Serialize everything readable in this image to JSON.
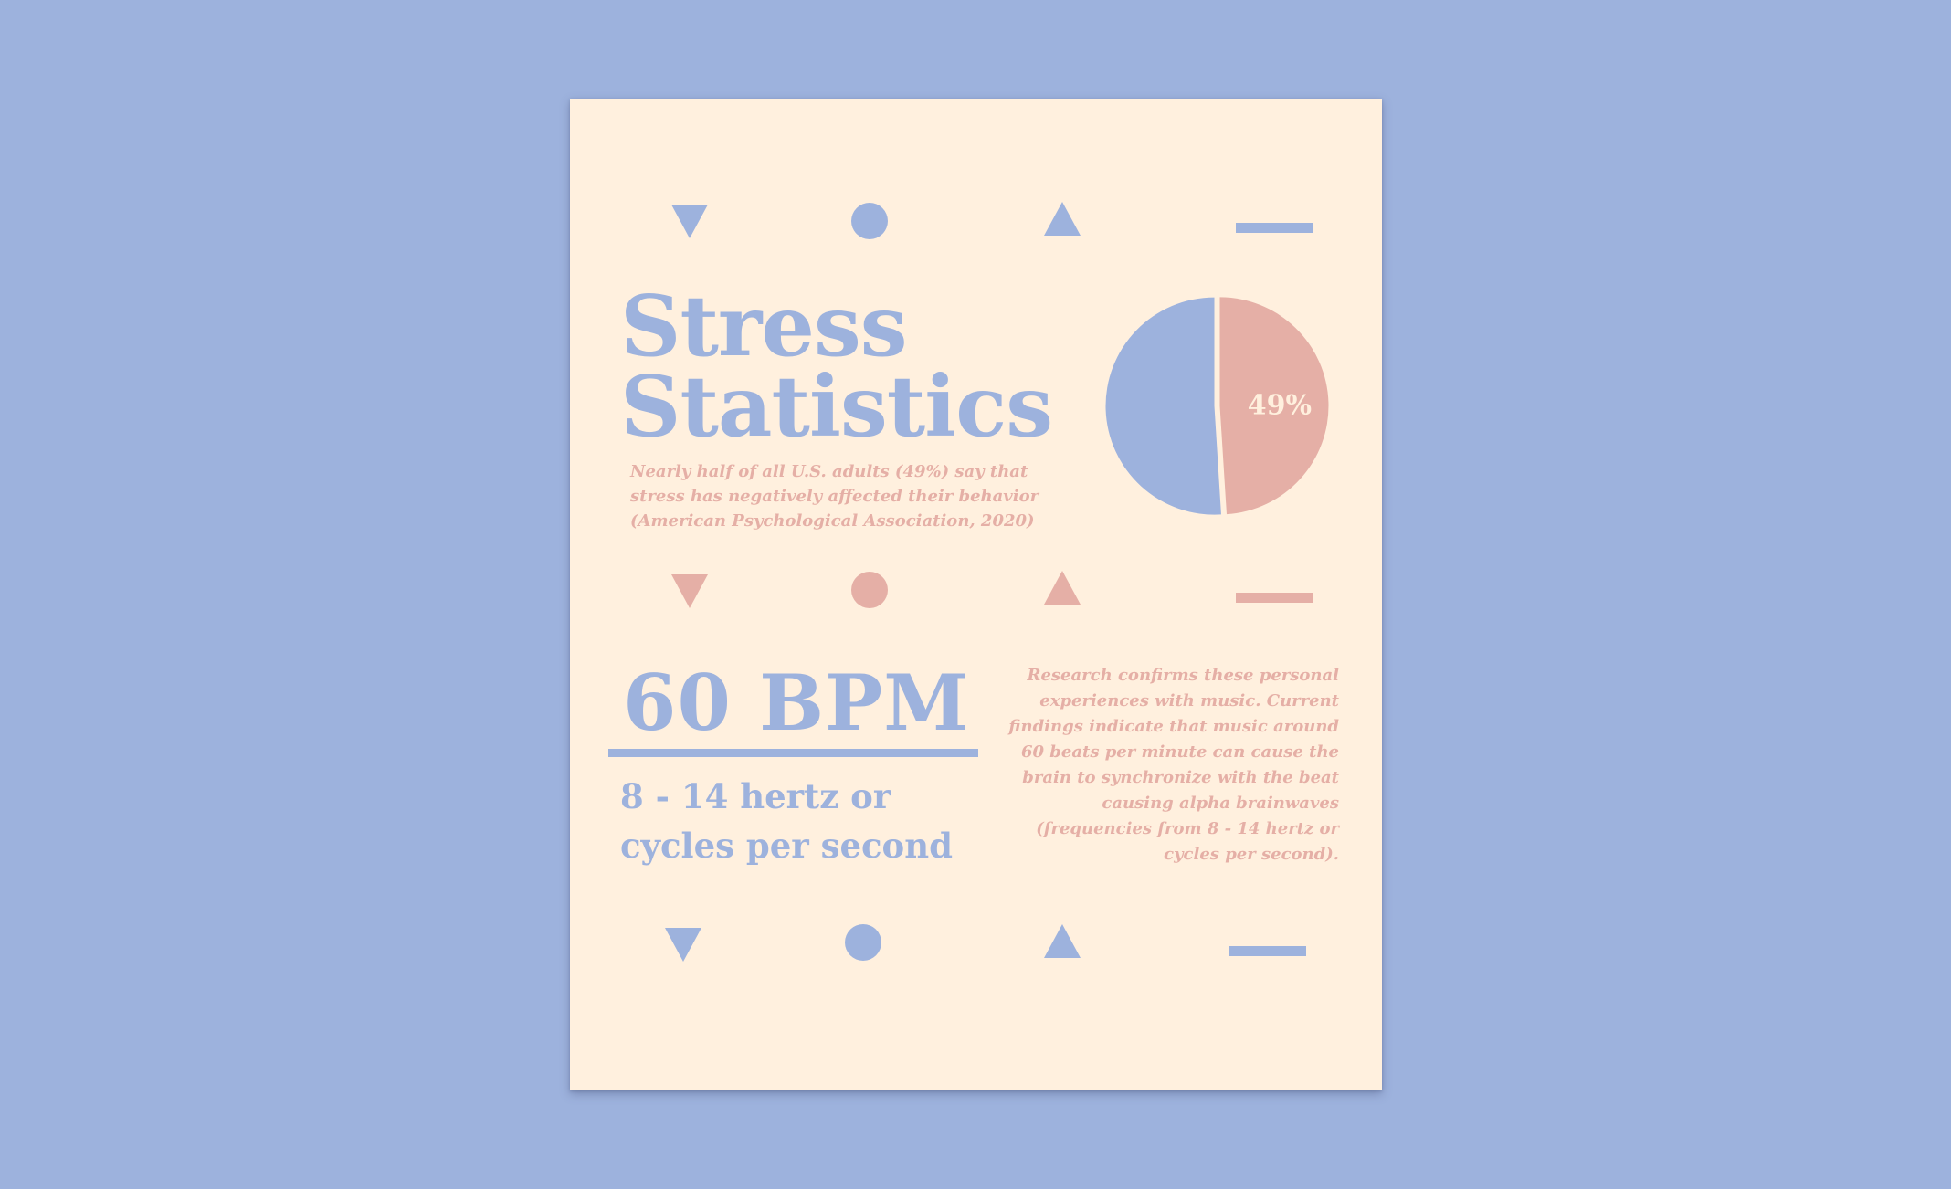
{
  "colors": {
    "background": "#9db2dd",
    "paper": "#fff0de",
    "blue": "#9db2dd",
    "pink": "#e5afa6"
  },
  "title_line1": "Stress",
  "title_line2": "Statistics",
  "description": "Nearly half of all U.S. adults (49%) say that stress has negatively affected their behavior (American Psychological Association, 2020)",
  "chart_data": {
    "type": "pie",
    "slices": [
      {
        "value": 51,
        "color": "#9db2dd"
      },
      {
        "value": 49,
        "color": "#e5afa6",
        "label": "49%"
      }
    ]
  },
  "bpm_heading": "60 BPM",
  "hertz_text": "8 - 14 hertz or cycles per second",
  "research_text": "Research confirms these personal experiences with music. Current findings indicate that music around 60 beats per minute can cause the brain to synchronize with the beat causing alpha brainwaves (frequencies from 8 - 14 hertz or cycles per second).",
  "shape_rows": [
    {
      "color": "blue",
      "icons": [
        "triangle-down-icon",
        "circle-icon",
        "triangle-up-icon",
        "dash-icon"
      ]
    },
    {
      "color": "pink",
      "icons": [
        "triangle-down-icon",
        "circle-icon",
        "triangle-up-icon",
        "dash-icon"
      ]
    },
    {
      "color": "blue",
      "icons": [
        "triangle-down-icon",
        "circle-icon",
        "triangle-up-icon",
        "dash-icon"
      ]
    }
  ]
}
